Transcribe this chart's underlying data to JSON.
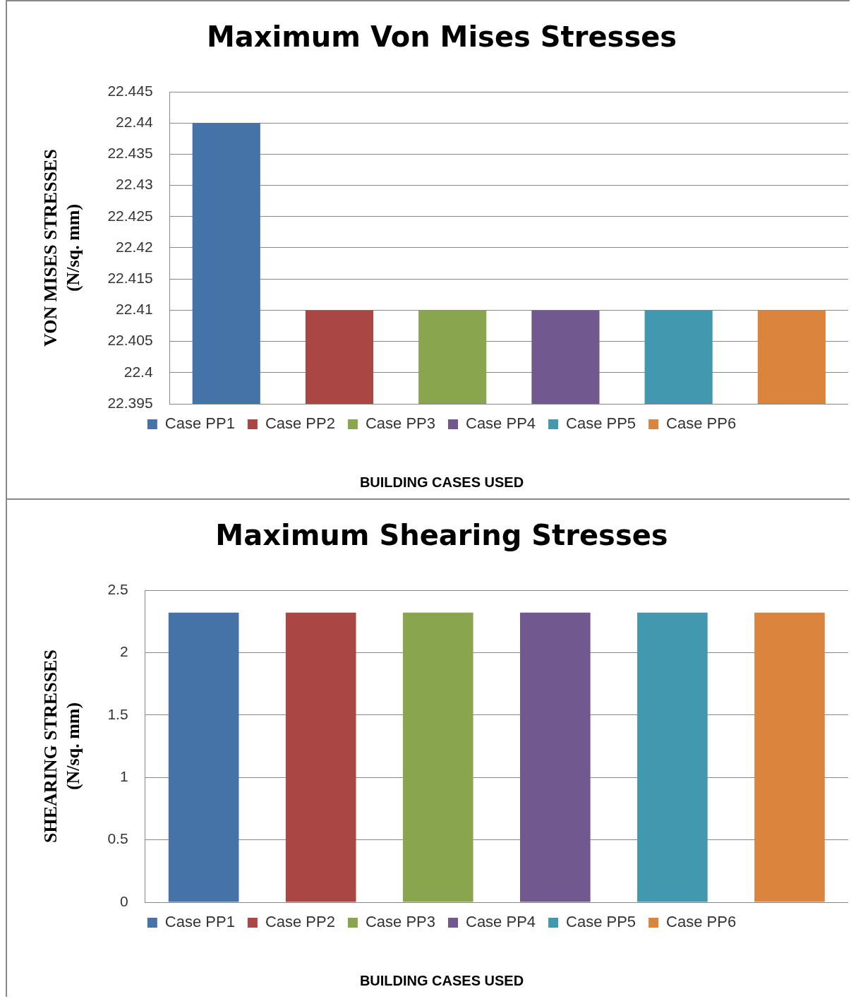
{
  "chart_data": [
    {
      "type": "bar",
      "title": "Maximum Von Mises Stresses",
      "xlabel": "BUILDING CASES USED",
      "ylabel": "VON MISES STRESSES\n(N/sq. mm)",
      "categories": [
        null
      ],
      "series": [
        {
          "name": "Case PP1",
          "color": "#4572a7",
          "values": [
            22.44
          ]
        },
        {
          "name": "Case PP2",
          "color": "#aa4643",
          "values": [
            22.41
          ]
        },
        {
          "name": "Case PP3",
          "color": "#89a54e",
          "values": [
            22.41
          ]
        },
        {
          "name": "Case PP4",
          "color": "#71588f",
          "values": [
            22.41
          ]
        },
        {
          "name": "Case PP5",
          "color": "#4198af",
          "values": [
            22.41
          ]
        },
        {
          "name": "Case PP6",
          "color": "#db843d",
          "values": [
            22.41
          ]
        }
      ],
      "ylim": [
        22.395,
        22.445
      ],
      "yticks": [
        22.395,
        22.4,
        22.405,
        22.41,
        22.415,
        22.42,
        22.425,
        22.43,
        22.435,
        22.44,
        22.445
      ],
      "grid": "y",
      "legend": "bottom",
      "tick_labels": "y"
    },
    {
      "type": "bar",
      "title": "Maximum Shearing Stresses",
      "xlabel": "BUILDING CASES USED",
      "ylabel": "SHEARING STRESSES\n(N/sq. mm)",
      "categories": [
        null
      ],
      "series": [
        {
          "name": "Case PP1",
          "color": "#4572a7",
          "values": [
            2.32
          ]
        },
        {
          "name": "Case PP2",
          "color": "#aa4643",
          "values": [
            2.32
          ]
        },
        {
          "name": "Case PP3",
          "color": "#89a54e",
          "values": [
            2.32
          ]
        },
        {
          "name": "Case PP4",
          "color": "#71588f",
          "values": [
            2.32
          ]
        },
        {
          "name": "Case PP5",
          "color": "#4198af",
          "values": [
            2.32
          ]
        },
        {
          "name": "Case PP6",
          "color": "#db843d",
          "values": [
            2.32
          ]
        }
      ],
      "ylim": [
        0,
        2.5
      ],
      "yticks": [
        0,
        0.5,
        1,
        1.5,
        2,
        2.5
      ],
      "grid": "y",
      "legend": "bottom",
      "tick_labels": "y"
    }
  ]
}
